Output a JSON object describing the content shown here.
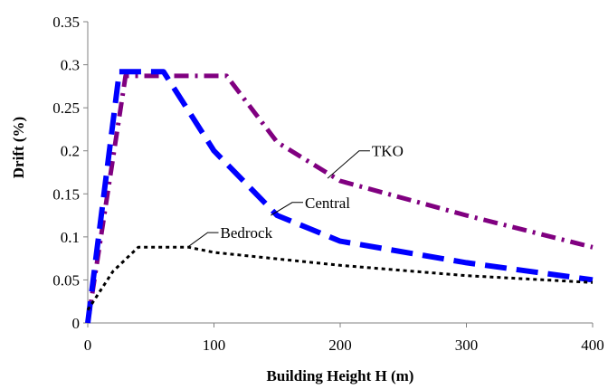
{
  "chart_data": {
    "type": "line",
    "title": "",
    "xlabel": "Building Height H (m)",
    "ylabel": "Drift (%)",
    "xlim": [
      0,
      400
    ],
    "ylim": [
      0,
      0.35
    ],
    "x_ticks": [
      "0",
      "100",
      "200",
      "300",
      "400"
    ],
    "y_ticks": [
      "0",
      "0.05",
      "0.1",
      "0.15",
      "0.2",
      "0.25",
      "0.3",
      "0.35"
    ],
    "grid": false,
    "legend": "none",
    "series": [
      {
        "name": "TKO",
        "color": "#800080",
        "dash": "dash-dot",
        "points": [
          [
            0,
            0
          ],
          [
            30,
            0.287
          ],
          [
            110,
            0.287
          ],
          [
            150,
            0.21
          ],
          [
            200,
            0.165
          ],
          [
            300,
            0.125
          ],
          [
            400,
            0.088
          ]
        ]
      },
      {
        "name": "Central",
        "color": "#0000ff",
        "dash": "long-dash",
        "points": [
          [
            0,
            0
          ],
          [
            25,
            0.292
          ],
          [
            60,
            0.292
          ],
          [
            100,
            0.2
          ],
          [
            150,
            0.125
          ],
          [
            200,
            0.095
          ],
          [
            300,
            0.07
          ],
          [
            400,
            0.05
          ]
        ]
      },
      {
        "name": "Bedrock",
        "color": "#000000",
        "dash": "dotted",
        "points": [
          [
            0,
            0.015
          ],
          [
            20,
            0.06
          ],
          [
            40,
            0.088
          ],
          [
            80,
            0.088
          ],
          [
            100,
            0.082
          ],
          [
            200,
            0.067
          ],
          [
            300,
            0.055
          ],
          [
            400,
            0.047
          ]
        ]
      }
    ],
    "annotations": [
      {
        "text": "TKO",
        "series": "TKO",
        "tip": [
          190,
          0.168
        ],
        "elbow": [
          215,
          0.2
        ]
      },
      {
        "text": "Central",
        "series": "Central",
        "tip": [
          145,
          0.125
        ],
        "elbow": [
          162,
          0.14
        ]
      },
      {
        "text": "Bedrock",
        "series": "Bedrock",
        "tip": [
          80,
          0.089
        ],
        "elbow": [
          95,
          0.105
        ]
      }
    ]
  }
}
